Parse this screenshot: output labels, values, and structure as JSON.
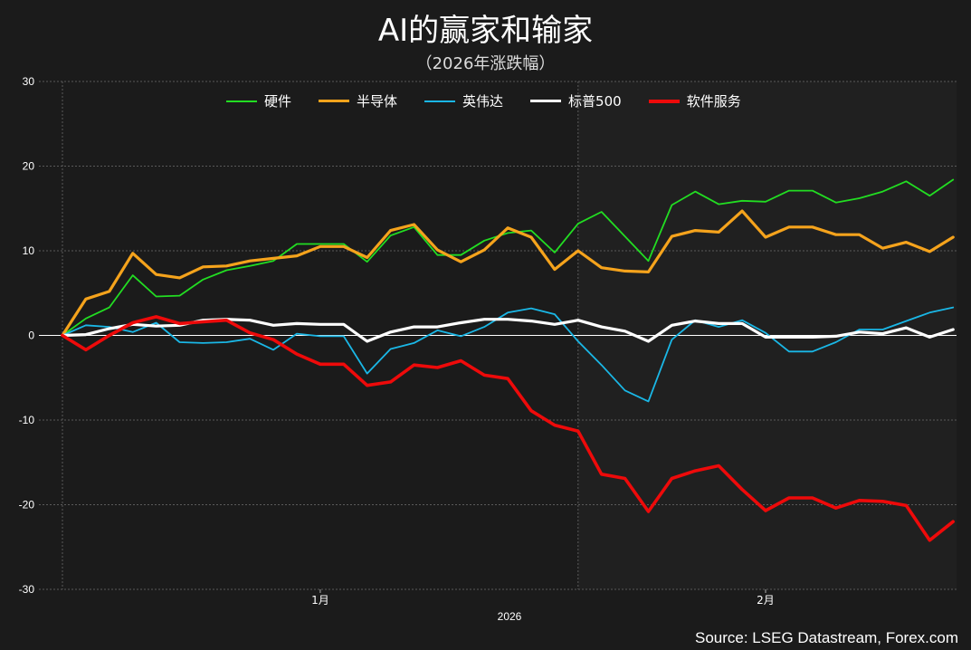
{
  "title": "AI的赢家和输家",
  "subtitle": "（2026年涨跌幅）",
  "source": "Source: LSEG Datastream, Forex.com",
  "chart_data": {
    "type": "line",
    "ylim": [
      -30,
      30
    ],
    "yticks": [
      "30",
      "20",
      "10",
      "0",
      "-10",
      "-20",
      "-30"
    ],
    "ytick_values": [
      30,
      20,
      10,
      0,
      -10,
      -20,
      -30
    ],
    "xtick_labels": [
      "1月",
      "2月"
    ],
    "xtick_index": [
      11,
      30
    ],
    "year_label": "2026",
    "legend_position": "top-center",
    "grid": true,
    "series": [
      {
        "name": "硬件",
        "color": "#22dd22",
        "width": 1.8,
        "values": [
          0,
          2.0,
          3.3,
          7.1,
          4.6,
          4.7,
          6.6,
          7.7,
          8.2,
          8.8,
          10.8,
          10.8,
          10.8,
          8.7,
          11.8,
          12.8,
          9.5,
          9.5,
          11.2,
          12.1,
          12.4,
          9.8,
          13.2,
          14.6,
          11.7,
          8.8,
          15.4,
          17.0,
          15.5,
          15.9,
          15.8,
          17.1,
          17.1,
          15.7,
          16.2,
          17.0,
          18.2,
          16.5,
          18.4
        ]
      },
      {
        "name": "半导体",
        "color": "#f5a31c",
        "width": 3.2,
        "values": [
          0,
          4.3,
          5.2,
          9.7,
          7.2,
          6.8,
          8.1,
          8.2,
          8.8,
          9.1,
          9.4,
          10.5,
          10.5,
          9.2,
          12.4,
          13.1,
          10.1,
          8.7,
          10.1,
          12.7,
          11.6,
          7.8,
          10.0,
          8.0,
          7.6,
          7.5,
          11.7,
          12.4,
          12.2,
          14.7,
          11.6,
          12.8,
          12.8,
          11.9,
          11.9,
          10.3,
          11.0,
          9.9,
          11.6
        ]
      },
      {
        "name": "英伟达",
        "color": "#1ab7e6",
        "width": 1.8,
        "values": [
          0,
          1.2,
          1.0,
          0.4,
          1.5,
          -0.8,
          -0.9,
          -0.8,
          -0.4,
          -1.7,
          0.2,
          -0.1,
          -0.1,
          -4.5,
          -1.6,
          -0.9,
          0.6,
          -0.1,
          1.0,
          2.7,
          3.2,
          2.5,
          -0.7,
          -3.5,
          -6.5,
          -7.8,
          -0.5,
          1.8,
          1.0,
          1.8,
          0.3,
          -1.9,
          -1.9,
          -0.8,
          0.7,
          0.7,
          1.7,
          2.7,
          3.3
        ]
      },
      {
        "name": "标普500",
        "color": "#ffffff",
        "width": 3.2,
        "values": [
          0,
          0.1,
          0.8,
          1.3,
          1.1,
          1.2,
          1.8,
          1.9,
          1.8,
          1.2,
          1.4,
          1.3,
          1.3,
          -0.7,
          0.4,
          1.0,
          1.0,
          1.5,
          1.9,
          1.9,
          1.7,
          1.3,
          1.8,
          1.0,
          0.5,
          -0.7,
          1.2,
          1.7,
          1.4,
          1.4,
          -0.2,
          -0.2,
          -0.2,
          -0.1,
          0.4,
          0.2,
          0.9,
          -0.2,
          0.7
        ]
      },
      {
        "name": "软件服务",
        "color": "#ee0a0a",
        "width": 3.6,
        "values": [
          0,
          -1.7,
          0.0,
          1.5,
          2.2,
          1.4,
          1.6,
          1.8,
          0.3,
          -0.5,
          -2.2,
          -3.4,
          -3.4,
          -5.9,
          -5.5,
          -3.5,
          -3.8,
          -3.0,
          -4.7,
          -5.1,
          -8.9,
          -10.6,
          -11.3,
          -16.4,
          -16.9,
          -20.8,
          -16.9,
          -16.0,
          -15.4,
          -18.2,
          -20.7,
          -19.2,
          -19.2,
          -20.4,
          -19.5,
          -19.6,
          -20.1,
          -24.2,
          -22.0
        ]
      }
    ]
  }
}
